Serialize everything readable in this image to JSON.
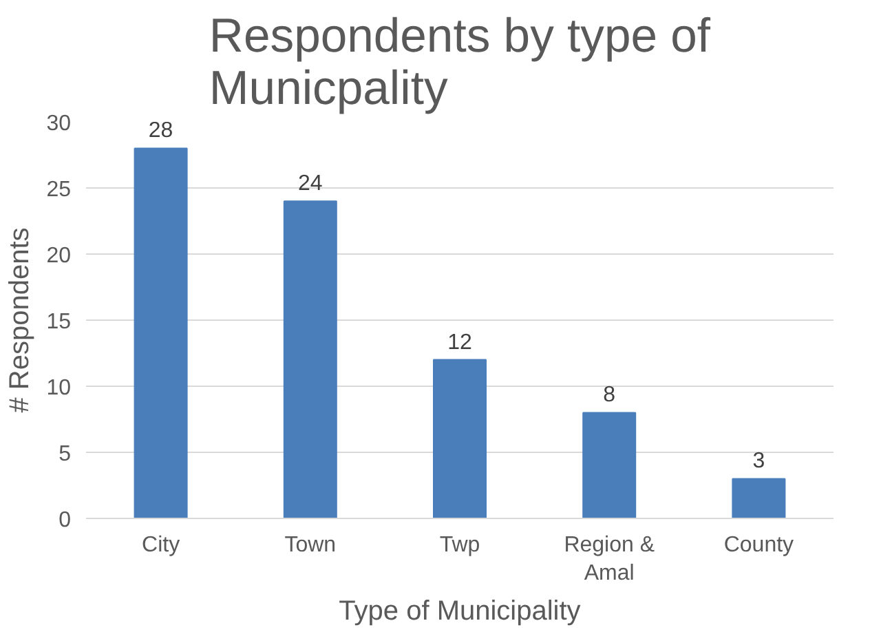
{
  "chart_data": {
    "type": "bar",
    "title": "Respondents by type of Municpality",
    "xlabel": "Type of Municipality",
    "ylabel": "# Respondents",
    "categories": [
      "City",
      "Town",
      "Twp",
      "Region & Amal",
      "County"
    ],
    "values": [
      28,
      24,
      12,
      8,
      3
    ],
    "color": "#4a7ebb",
    "data_labels": true,
    "ylim": [
      0,
      30
    ],
    "yticks": [
      0,
      5,
      10,
      15,
      20,
      25,
      30
    ],
    "grid": "y"
  }
}
